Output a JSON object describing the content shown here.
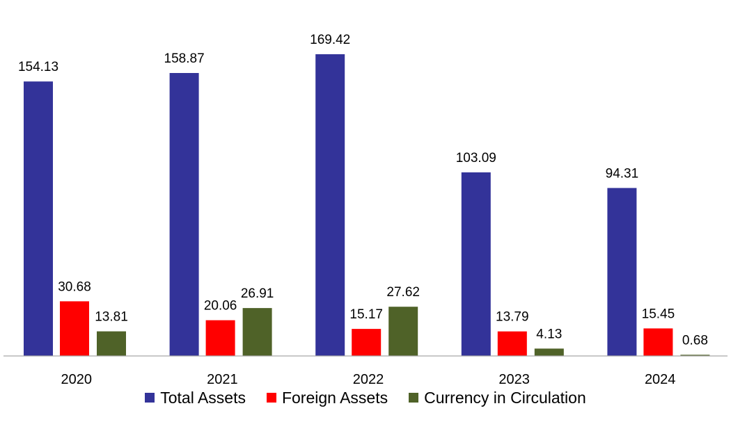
{
  "chart_data": {
    "type": "bar",
    "categories": [
      "2020",
      "2021",
      "2022",
      "2023",
      "2024"
    ],
    "series": [
      {
        "name": "Total Assets",
        "color": "#333399",
        "values": [
          154.13,
          158.87,
          169.42,
          103.09,
          94.31
        ]
      },
      {
        "name": "Foreign Assets",
        "color": "#ff0000",
        "values": [
          30.68,
          20.06,
          15.17,
          13.79,
          15.45
        ]
      },
      {
        "name": "Currency in Circulation",
        "color": "#4f6228",
        "values": [
          13.81,
          26.91,
          27.62,
          4.13,
          0.68
        ]
      }
    ],
    "value_labels": [
      [
        "154.13",
        "158.87",
        "169.42",
        "103.09",
        "94.31"
      ],
      [
        "30.68",
        "20.06",
        "15.17",
        "13.79",
        "15.45"
      ],
      [
        "13.81",
        "26.91",
        "27.62",
        "4.13",
        "0.68"
      ]
    ],
    "title": "",
    "xlabel": "",
    "ylabel": "",
    "ylim": [
      0,
      169.42
    ],
    "grid": false,
    "legend_position": "bottom"
  }
}
